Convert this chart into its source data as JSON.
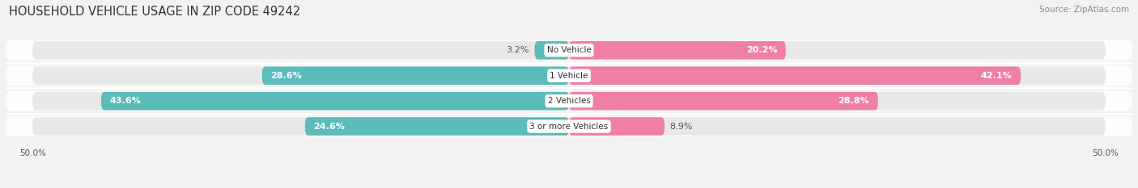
{
  "title": "HOUSEHOLD VEHICLE USAGE IN ZIP CODE 49242",
  "source": "Source: ZipAtlas.com",
  "categories": [
    "No Vehicle",
    "1 Vehicle",
    "2 Vehicles",
    "3 or more Vehicles"
  ],
  "owner_values": [
    3.2,
    28.6,
    43.6,
    24.6
  ],
  "renter_values": [
    20.2,
    42.1,
    28.8,
    8.9
  ],
  "owner_color": "#5bbcba",
  "renter_color": "#f07fa8",
  "background_color": "#f2f2f2",
  "bar_background": "#e8e8e8",
  "xlim": 50.0,
  "title_fontsize": 10.5,
  "source_fontsize": 7.5,
  "value_fontsize": 8.0,
  "cat_fontsize": 7.5,
  "axis_label_fontsize": 7.5,
  "bar_height": 0.72,
  "row_sep_color": "#ffffff",
  "figsize": [
    14.06,
    2.33
  ],
  "dpi": 100
}
